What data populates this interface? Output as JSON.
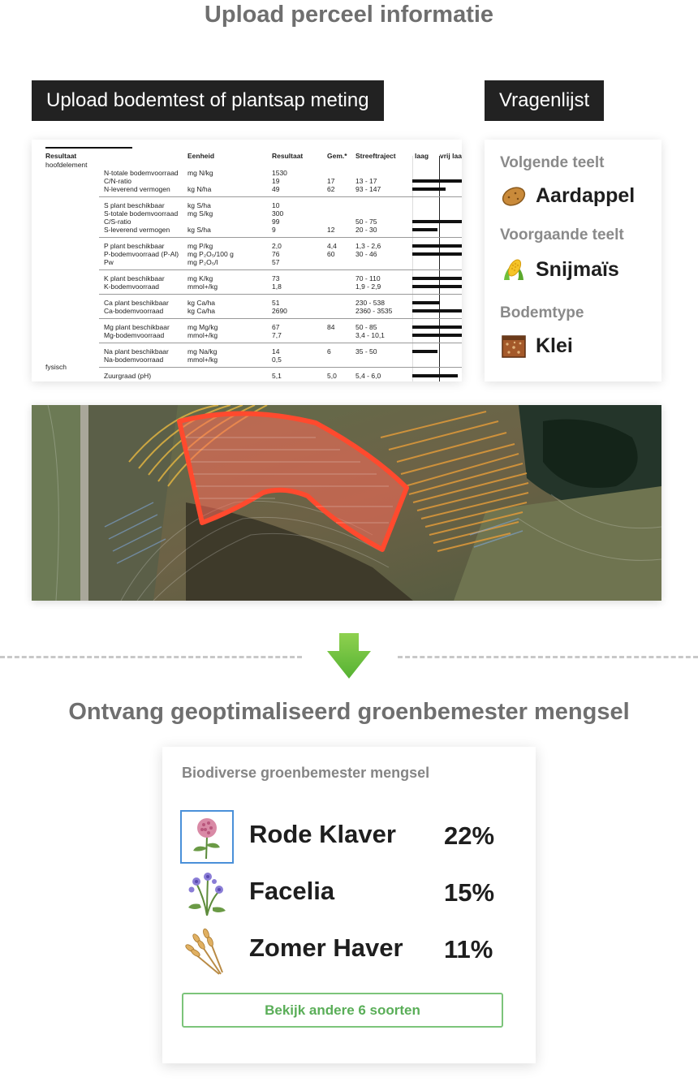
{
  "header": {
    "title": "Upload perceel informatie"
  },
  "upload": {
    "soil_label": "Upload bodemtest of plantsap meting",
    "quiz_label": "Vragenlijst"
  },
  "report": {
    "cols": {
      "resultaat": "Resultaat",
      "hoofdelement": "hoofdelement",
      "eenheid": "Eenheid",
      "resultaat2": "Resultaat",
      "gem": "Gem.*",
      "streeftraject": "Streeftraject",
      "laag": "laag",
      "vrij": "vrij laag"
    },
    "group_fysisch": "fysisch",
    "rows": [
      {
        "name": "N-totale bodemvoorraad",
        "unit": "mg N/kg",
        "res": "1530",
        "gem": "",
        "range": ""
      },
      {
        "name": "C/N-ratio",
        "unit": "",
        "res": "19",
        "gem": "17",
        "range": "13 - 17"
      },
      {
        "name": "N-leverend vermogen",
        "unit": "kg N/ha",
        "res": "49",
        "gem": "62",
        "range": "93 - 147"
      },
      {
        "name": "S plant beschikbaar",
        "unit": "kg S/ha",
        "res": "10",
        "gem": "",
        "range": ""
      },
      {
        "name": "S-totale bodemvoorraad",
        "unit": "mg S/kg",
        "res": "300",
        "gem": "",
        "range": ""
      },
      {
        "name": "C/S-ratio",
        "unit": "",
        "res": "99",
        "gem": "",
        "range": "50 - 75"
      },
      {
        "name": "S-leverend vermogen",
        "unit": "kg S/ha",
        "res": "9",
        "gem": "12",
        "range": "20 - 30"
      },
      {
        "name": "P plant beschikbaar",
        "unit": "mg P/kg",
        "res": "2,0",
        "gem": "4,4",
        "range": "1,3 - 2,6"
      },
      {
        "name": "P-bodemvoorraad (P-Al)",
        "unit": "mg P₂O₅/100 g",
        "res": "76",
        "gem": "60",
        "range": "30 - 46"
      },
      {
        "name": "Pw",
        "unit": "mg P₂O₅/l",
        "res": "57",
        "gem": "",
        "range": ""
      },
      {
        "name": "K plant beschikbaar",
        "unit": "mg K/kg",
        "res": "73",
        "gem": "",
        "range": "70 - 110"
      },
      {
        "name": "K-bodemvoorraad",
        "unit": "mmol+/kg",
        "res": "1,8",
        "gem": "",
        "range": "1,9 - 2,9"
      },
      {
        "name": "Ca plant beschikbaar",
        "unit": "kg Ca/ha",
        "res": "51",
        "gem": "",
        "range": "230 - 538"
      },
      {
        "name": "Ca-bodemvoorraad",
        "unit": "kg Ca/ha",
        "res": "2690",
        "gem": "",
        "range": "2360 - 3535"
      },
      {
        "name": "Mg plant beschikbaar",
        "unit": "mg Mg/kg",
        "res": "67",
        "gem": "84",
        "range": "50 - 85"
      },
      {
        "name": "Mg-bodemvoorraad",
        "unit": "mmol+/kg",
        "res": "7,7",
        "gem": "",
        "range": "3,4 - 10,1"
      },
      {
        "name": "Na plant beschikbaar",
        "unit": "mg Na/kg",
        "res": "14",
        "gem": "6",
        "range": "35 - 50"
      },
      {
        "name": "Na-bodemvoorraad",
        "unit": "mmol+/kg",
        "res": "0,5",
        "gem": "",
        "range": ""
      },
      {
        "name": "Zuurgraad (pH)",
        "unit": "",
        "res": "5,1",
        "gem": "5,0",
        "range": "5,4 - 6,0"
      }
    ]
  },
  "quiz": {
    "next_label": "Volgende teelt",
    "next_value": "Aardappel",
    "prev_label": "Voorgaande teelt",
    "prev_value": "Snijmaïs",
    "soil_label": "Bodemtype",
    "soil_value": "Klei"
  },
  "result": {
    "title": "Ontvang geoptimaliseerd groenbemester mengsel"
  },
  "mix": {
    "title": "Biodiverse groenbemester mengsel",
    "items": [
      {
        "name": "Rode Klaver",
        "pct": "22%"
      },
      {
        "name": "Facelia",
        "pct": "15%"
      },
      {
        "name": "Zomer Haver",
        "pct": "11%"
      }
    ],
    "button_label": "Bekijk andere 6 soorten"
  }
}
